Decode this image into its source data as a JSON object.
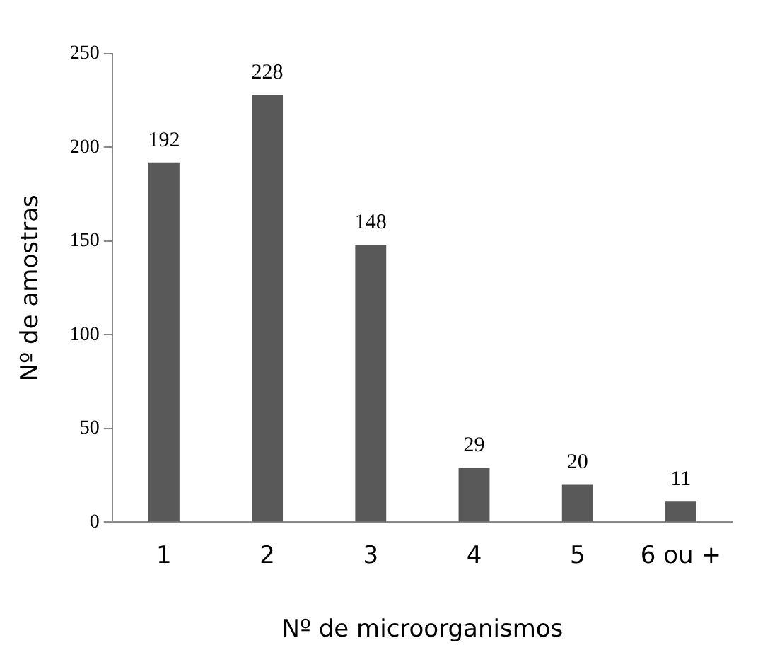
{
  "chart_data": {
    "type": "bar",
    "xlabel": "Nº de microorganismos",
    "ylabel": "Nº de amostras",
    "categories": [
      "1",
      "2",
      "3",
      "4",
      "5",
      "6 ou +"
    ],
    "values": [
      192,
      228,
      148,
      29,
      20,
      11
    ],
    "color": "#595959",
    "ylim": [
      0,
      250
    ],
    "yticks": [
      0,
      50,
      100,
      150,
      200,
      250
    ],
    "grid": false,
    "legend": false,
    "data_labels": true
  }
}
